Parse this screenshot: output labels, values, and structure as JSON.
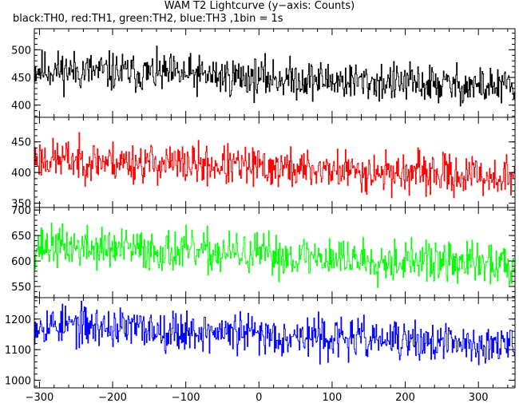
{
  "title": "WAM T2 Lightcurve (y−axis: Counts)",
  "subtitle": "black:TH0, red:TH1, green:TH2, blue:TH3 ,1bin = 1s",
  "chart_data": {
    "type": "line",
    "x_range": [
      -307,
      350
    ],
    "x_ticks": [
      -300,
      -200,
      -100,
      0,
      100,
      200,
      300
    ],
    "x_tick_labels": [
      "−300",
      "−200",
      "−100",
      "0",
      "100",
      "200",
      "300"
    ],
    "bin_seconds": 1,
    "panels": [
      {
        "series_name": "TH0",
        "color": "#000000",
        "ylim": [
          378,
          538
        ],
        "y_ticks": [
          400,
          450,
          500
        ],
        "y_tick_labels": [
          "400",
          "450",
          "500"
        ],
        "trend": {
          "start": 465,
          "end": 432
        },
        "noise_amplitude": 26,
        "noise_seed": 11
      },
      {
        "series_name": "TH1",
        "color": "#ff0000",
        "ylim": [
          343,
          490
        ],
        "y_ticks": [
          350,
          400,
          450
        ],
        "y_tick_labels": [
          "350",
          "400",
          "450"
        ],
        "trend": {
          "start": 423,
          "end": 392
        },
        "noise_amplitude": 24,
        "noise_seed": 23
      },
      {
        "series_name": "TH2",
        "color": "#00ff00",
        "ylim": [
          528,
          705
        ],
        "y_ticks": [
          550,
          600,
          650,
          700
        ],
        "y_tick_labels": [
          "550",
          "600",
          "650",
          "700"
        ],
        "trend": {
          "start": 630,
          "end": 592
        },
        "noise_amplitude": 30,
        "noise_seed": 37
      },
      {
        "series_name": "TH3",
        "color": "#0000ff",
        "ylim": [
          975,
          1270
        ],
        "y_ticks": [
          1000,
          1100,
          1200
        ],
        "y_tick_labels": [
          "1000",
          "1100",
          "1200"
        ],
        "trend": {
          "start": 1185,
          "end": 1110
        },
        "noise_amplitude": 48,
        "noise_seed": 53
      }
    ]
  }
}
